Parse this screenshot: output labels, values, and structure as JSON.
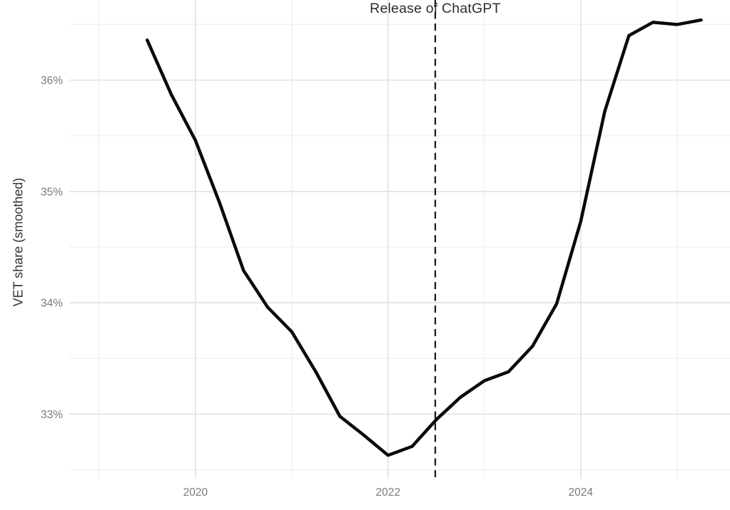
{
  "chart_data": {
    "type": "line",
    "title": "",
    "xlabel": "",
    "ylabel": "VET share (smoothed)",
    "annotation": {
      "text": "Release of ChatGPT",
      "x": 2022.49,
      "style": "dashed-vertical-line"
    },
    "x": [
      2019.5,
      2019.75,
      2020.0,
      2020.25,
      2020.5,
      2020.75,
      2021.0,
      2021.25,
      2021.5,
      2021.75,
      2022.0,
      2022.25,
      2022.5,
      2022.75,
      2023.0,
      2023.25,
      2023.5,
      2023.75,
      2024.0,
      2024.25,
      2024.5,
      2024.75,
      2025.0,
      2025.25
    ],
    "series": [
      {
        "name": "VET share (smoothed)",
        "values": [
          36.36,
          35.87,
          35.46,
          34.9,
          34.29,
          33.96,
          33.74,
          33.38,
          32.98,
          32.81,
          32.63,
          32.71,
          32.95,
          33.15,
          33.3,
          33.38,
          33.61,
          33.99,
          34.73,
          35.72,
          36.4,
          36.52,
          36.5,
          36.54
        ]
      }
    ],
    "xlim": [
      2018.69,
      2025.55
    ],
    "ylim": [
      32.42,
      36.72
    ],
    "x_ticks_major": [
      {
        "value": 2020,
        "label": "2020"
      },
      {
        "value": 2022,
        "label": "2022"
      },
      {
        "value": 2024,
        "label": "2024"
      }
    ],
    "x_ticks_minor": [
      2019,
      2021,
      2023,
      2025
    ],
    "y_ticks_major": [
      {
        "value": 33,
        "label": "33%"
      },
      {
        "value": 34,
        "label": "34%"
      },
      {
        "value": 35,
        "label": "35%"
      },
      {
        "value": 36,
        "label": "36%"
      }
    ],
    "y_ticks_minor": [
      32.5,
      33.5,
      34.5,
      35.5,
      36.5
    ],
    "grid": "major-and-minor",
    "legend": "none",
    "line_width": 4.5,
    "vline_width": 2.3,
    "vline_dash": "10 6.5"
  },
  "colors": {
    "background": "#ffffff",
    "line": "#0a0a0a",
    "vline": "#1c1c1c",
    "grid_major": "#e4e4e4",
    "grid_minor": "#f1f1f1",
    "tick_label": "#7a7a7a",
    "axis_title": "#333333",
    "annotation": "#2d2d2d"
  }
}
